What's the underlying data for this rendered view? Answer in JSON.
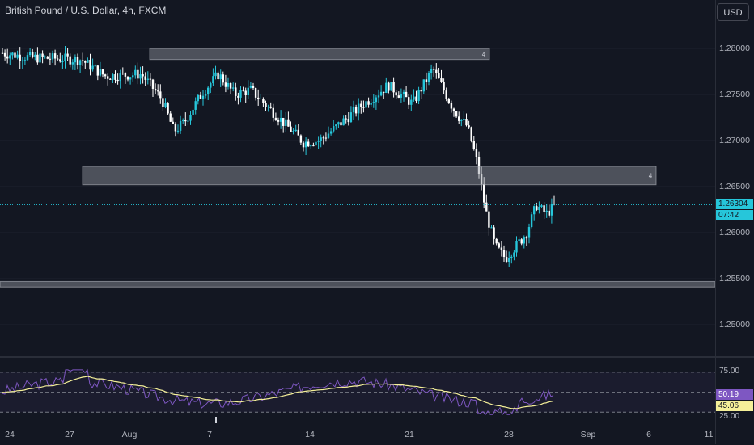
{
  "header": {
    "symbol_title": "British Pound / U.S. Dollar, 4h, FXCM",
    "currency_button": "USD"
  },
  "price_axis": {
    "ticks": [
      "1.28000",
      "1.27500",
      "1.27000",
      "1.26500",
      "1.26000",
      "1.25500",
      "1.25000"
    ],
    "last_price": "1.26304",
    "countdown": "07:42",
    "last_price_color": "#26c6da"
  },
  "rsi_axis": {
    "ticks": [
      "75.00",
      "25.00"
    ],
    "rsi_value": "50.19",
    "rsi_ma_value": "45.06",
    "rsi_color": "#7e57c2",
    "rsi_ma_color": "#f5f099"
  },
  "time_axis": {
    "labels": [
      "24",
      "27",
      "Aug",
      "7",
      "14",
      "21",
      "28",
      "Sep",
      "6",
      "11"
    ]
  },
  "zones": [
    {
      "label": "4",
      "top": 1.28,
      "bottom": 1.2788
    },
    {
      "label": "4",
      "top": 1.2672,
      "bottom": 1.2652
    },
    {
      "label": "",
      "top": 1.2547,
      "bottom": 1.2541
    }
  ],
  "colors": {
    "background": "#131722",
    "grid": "#1e222d",
    "candle_up": "#26c6da",
    "candle_down": "#ffffff",
    "zone_fill": "#9598a1"
  }
}
